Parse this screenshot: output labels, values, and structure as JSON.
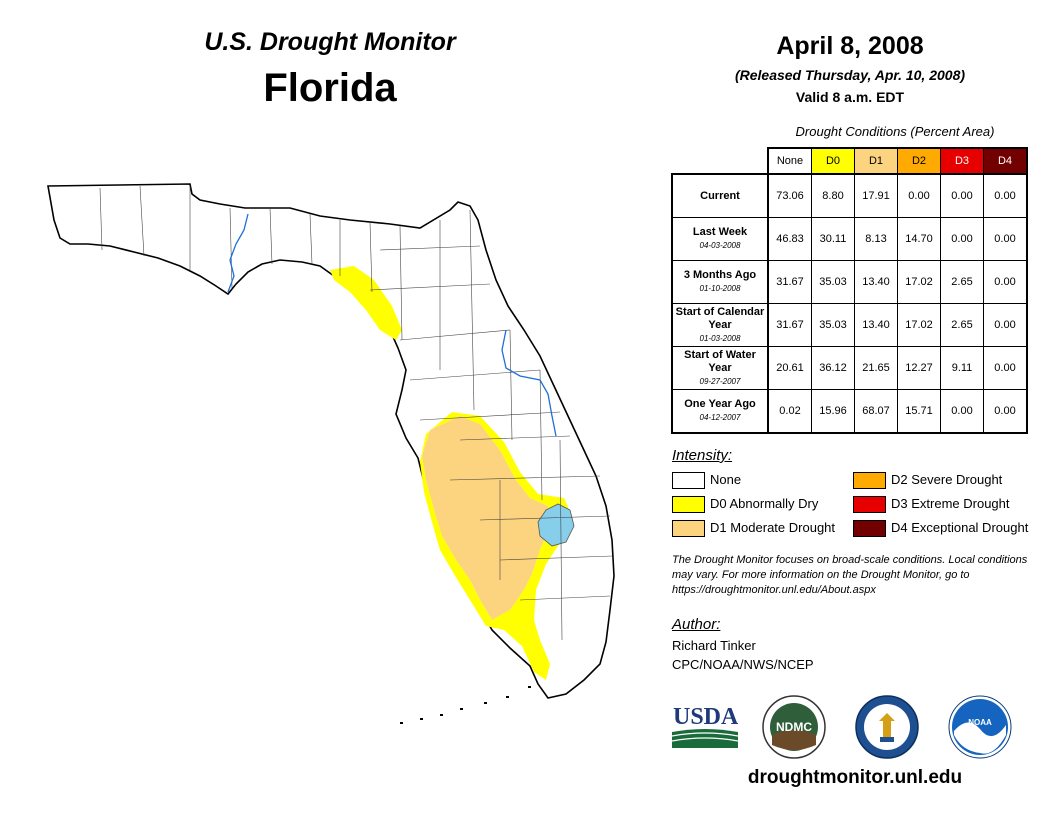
{
  "header": {
    "line1": "U.S. Drought Monitor",
    "line2": "Florida",
    "date": "April 8, 2008",
    "released": "(Released Thursday, Apr. 10, 2008)",
    "valid": "Valid 8 a.m. EDT"
  },
  "table": {
    "caption": "Drought Conditions (Percent Area)",
    "columns": [
      {
        "label": "None",
        "color": "#ffffff"
      },
      {
        "label": "D0",
        "color": "#ffff00"
      },
      {
        "label": "D1",
        "color": "#fcd37f"
      },
      {
        "label": "D2",
        "color": "#ffaa00"
      },
      {
        "label": "D3",
        "color": "#e60000"
      },
      {
        "label": "D4",
        "color": "#730000"
      }
    ],
    "rows": [
      {
        "label": "Current",
        "sub": "",
        "values": [
          "73.06",
          "8.80",
          "17.91",
          "0.00",
          "0.00",
          "0.00"
        ]
      },
      {
        "label": "Last Week",
        "sub": "04-03-2008",
        "values": [
          "46.83",
          "30.11",
          "8.13",
          "14.70",
          "0.00",
          "0.00"
        ]
      },
      {
        "label": "3 Months Ago",
        "sub": "01-10-2008",
        "values": [
          "31.67",
          "35.03",
          "13.40",
          "17.02",
          "2.65",
          "0.00"
        ]
      },
      {
        "label": "Start of Calendar Year",
        "sub": "01-03-2008",
        "values": [
          "31.67",
          "35.03",
          "13.40",
          "17.02",
          "2.65",
          "0.00"
        ]
      },
      {
        "label": "Start of Water Year",
        "sub": "09-27-2007",
        "values": [
          "20.61",
          "36.12",
          "21.65",
          "12.27",
          "9.11",
          "0.00"
        ]
      },
      {
        "label": "One Year Ago",
        "sub": "04-12-2007",
        "values": [
          "0.02",
          "15.96",
          "68.07",
          "15.71",
          "0.00",
          "0.00"
        ]
      }
    ]
  },
  "legend": {
    "heading": "Intensity:",
    "items": [
      {
        "label": "None",
        "color": "#ffffff"
      },
      {
        "label": "D0 Abnormally Dry",
        "color": "#ffff00"
      },
      {
        "label": "D1 Moderate Drought",
        "color": "#fcd37f"
      },
      {
        "label": "D2 Severe Drought",
        "color": "#ffaa00"
      },
      {
        "label": "D3 Extreme Drought",
        "color": "#e60000"
      },
      {
        "label": "D4 Exceptional Drought",
        "color": "#730000"
      }
    ]
  },
  "note": "The Drought Monitor focuses on broad-scale conditions. Local conditions may vary. For more information on the Drought Monitor, go to https://droughtmonitor.unl.edu/About.aspx",
  "author": {
    "heading": "Author:",
    "name": "Richard Tinker",
    "org": "CPC/NOAA/NWS/NCEP"
  },
  "logos": {
    "usda": "USDA",
    "ndmc": "NDMC",
    "noaa": "NOAA"
  },
  "website": "droughtmonitor.unl.edu",
  "map_colors": {
    "water": "#87ceeb",
    "d0": "#ffff00",
    "d1": "#fcd37f"
  }
}
